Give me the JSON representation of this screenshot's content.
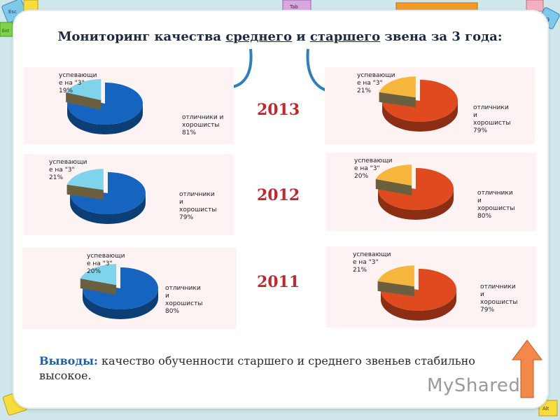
{
  "title": {
    "prefix": "Мониторинг качества ",
    "middle": "среднего",
    "conj": " и ",
    "senior": "старшего",
    "suffix": " звена за  3 года:"
  },
  "years": [
    "2013",
    "2012",
    "2011"
  ],
  "chart_data": [
    {
      "type": "pie",
      "group": "среднее звено",
      "year": "2013",
      "color": "#1565c0",
      "labels": [
        "успевающие на \"3\"",
        "отличники и хорошисты"
      ],
      "values": [
        19,
        81
      ]
    },
    {
      "type": "pie",
      "group": "старшее звено",
      "year": "2013",
      "color": "#e04a1f",
      "labels": [
        "успевающие на \"3\"",
        "отличники и хорошисты"
      ],
      "values": [
        21,
        79
      ]
    },
    {
      "type": "pie",
      "group": "среднее звено",
      "year": "2012",
      "color": "#1565c0",
      "labels": [
        "успевающие на \"3\"",
        "отличники и хорошисты"
      ],
      "values": [
        21,
        79
      ]
    },
    {
      "type": "pie",
      "group": "старшее звено",
      "year": "2012",
      "color": "#e04a1f",
      "labels": [
        "успевающие на \"3\"",
        "отличники и хорошисты"
      ],
      "values": [
        20,
        80
      ]
    },
    {
      "type": "pie",
      "group": "среднее звено",
      "year": "2011",
      "color": "#1565c0",
      "labels": [
        "успевающие на \"3\"",
        "отличники и хорошисты"
      ],
      "values": [
        20,
        80
      ]
    },
    {
      "type": "pie",
      "group": "старшее звено",
      "year": "2011",
      "color": "#e04a1f",
      "labels": [
        "успевающие на \"3\"",
        "отличники и хорошисты"
      ],
      "values": [
        21,
        79
      ]
    }
  ],
  "conclusion": {
    "lead": "Выводы:",
    "text": " качество обученности старшего и среднего звеньев стабильно высокое."
  },
  "keyboard": {
    "esc": "Esc",
    "tab": "Tab",
    "alt": "Alt",
    "ent": "Ent",
    "nine": "9"
  },
  "watermark": "MyShared"
}
